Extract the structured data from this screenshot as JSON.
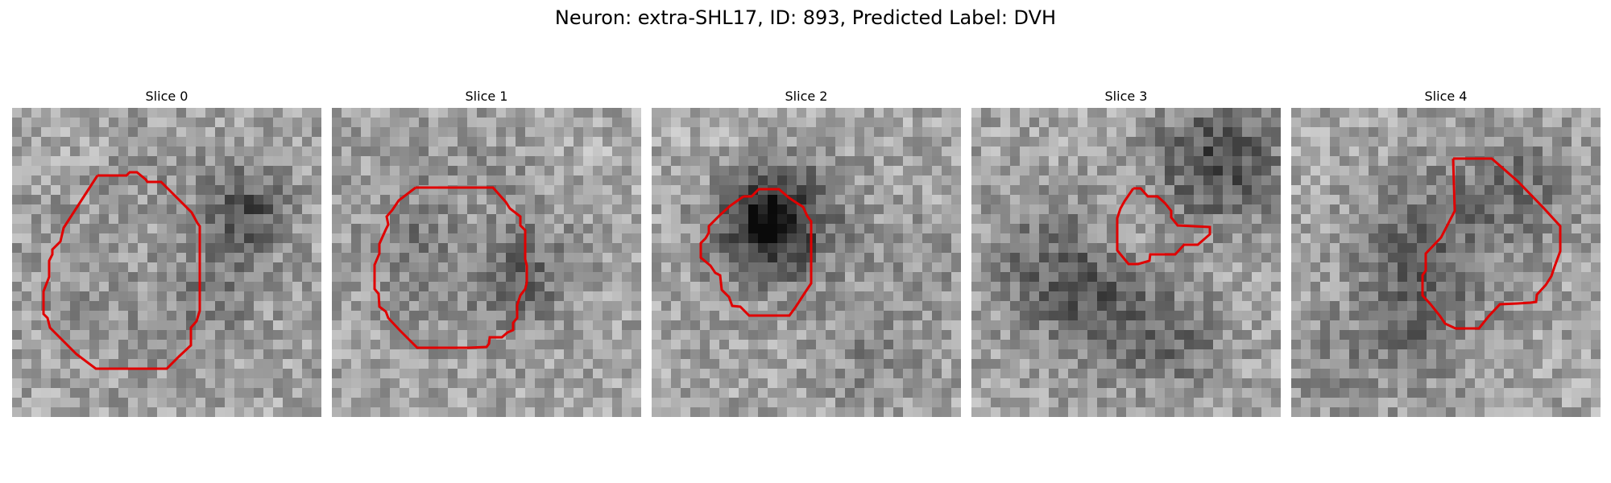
{
  "figure": {
    "title": "Neuron: extra-SHL17, ID: 893, Predicted Label: DVH"
  },
  "panels": [
    {
      "title": "Slice 0",
      "image": "grayscale-microscopy-slice",
      "contour_color": "#e00000"
    },
    {
      "title": "Slice 1",
      "image": "grayscale-microscopy-slice",
      "contour_color": "#e00000"
    },
    {
      "title": "Slice 2",
      "image": "grayscale-microscopy-slice",
      "contour_color": "#e00000"
    },
    {
      "title": "Slice 3",
      "image": "grayscale-microscopy-slice",
      "contour_color": "#e00000"
    },
    {
      "title": "Slice 4",
      "image": "grayscale-microscopy-slice",
      "contour_color": "#e00000"
    }
  ]
}
